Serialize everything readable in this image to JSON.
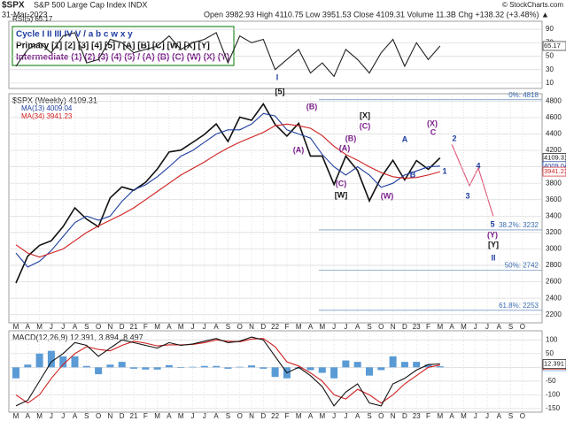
{
  "header": {
    "symbol": "$SPX",
    "name": "S&P 500 Large Cap Index INDX",
    "date": "31-Mar-2023",
    "quote": "Open 3982.93 High 4110.75 Low 3951.53 Close 4109.31 Volume 11.3B Chg +138.32 (+3.48%) ▲",
    "credit": "© StockCharts.com"
  },
  "legend_box": [
    "Cycle I II III IV V / a b c w x y",
    "Primary [1] [2] [3] [4] [5] / [A] [B] [C] [W] [X] [Y]",
    "Intermediate (1) (2) (3) (4) (5) / (A) (B) (C) (W) (X) (Y)"
  ],
  "chart_data": [
    {
      "type": "line",
      "title": "RSI(5) 65.17",
      "ylim": [
        2,
        102
      ],
      "yticks": [
        10,
        30,
        50,
        70,
        90
      ],
      "grid": true,
      "series": [
        {
          "name": "RSI(5)",
          "color": "#222222",
          "values": [
            35,
            60,
            70,
            55,
            80,
            85,
            40,
            45,
            75,
            70,
            55,
            60,
            65,
            80,
            60,
            70,
            75,
            85,
            40,
            80,
            70,
            75,
            30,
            45,
            60,
            25,
            40,
            20,
            60,
            45,
            25,
            55,
            75,
            35,
            70,
            45,
            65.17
          ]
        }
      ]
    },
    {
      "type": "line",
      "title": "$SPX (Weekly) 4109.31",
      "ylim": [
        2100,
        4890
      ],
      "yticks": [
        2200,
        2400,
        2600,
        2800,
        3000,
        3200,
        3400,
        3600,
        3800,
        4000,
        4200,
        4400,
        4600,
        4800
      ],
      "grid": true,
      "categories": [
        "M",
        "A",
        "M",
        "J",
        "J",
        "A",
        "S",
        "O",
        "N",
        "D",
        "21",
        "F",
        "M",
        "A",
        "M",
        "J",
        "J",
        "A",
        "S",
        "O",
        "N",
        "D",
        "22",
        "F",
        "M",
        "A",
        "M",
        "J",
        "J",
        "A",
        "S",
        "O",
        "N",
        "D",
        "23",
        "F",
        "M",
        "A",
        "M",
        "J",
        "J",
        "A",
        "S",
        "O"
      ],
      "series": [
        {
          "name": "$SPX (Weekly)",
          "color": "#111111",
          "values": [
            2585,
            2912,
            3044,
            3100,
            3271,
            3500,
            3363,
            3270,
            3622,
            3756,
            3714,
            3811,
            3973,
            4181,
            4204,
            4298,
            4395,
            4523,
            4308,
            4605,
            4567,
            4766,
            4516,
            4374,
            4530,
            4132,
            4132,
            3785,
            4130,
            3955,
            3586,
            3872,
            4080,
            3840,
            4077,
            3970,
            4109.31,
            null,
            null,
            null,
            null,
            null,
            null,
            null
          ]
        },
        {
          "name": "MA(13) 4009.04",
          "color": "#1f3fa0",
          "values": [
            2950,
            2780,
            2850,
            2980,
            3150,
            3320,
            3400,
            3350,
            3400,
            3580,
            3720,
            3780,
            3880,
            4000,
            4130,
            4200,
            4300,
            4400,
            4450,
            4450,
            4520,
            4650,
            4620,
            4450,
            4400,
            4350,
            4150,
            4000,
            3900,
            4000,
            3900,
            3750,
            3800,
            3900,
            3950,
            4000,
            4009.04,
            null,
            null,
            null,
            null,
            null,
            null,
            null
          ]
        },
        {
          "name": "MA(34) 3941.23",
          "color": "#d02020",
          "values": [
            3050,
            2950,
            2900,
            2950,
            3000,
            3100,
            3200,
            3280,
            3350,
            3420,
            3500,
            3600,
            3700,
            3800,
            3900,
            3980,
            4060,
            4150,
            4230,
            4300,
            4360,
            4420,
            4500,
            4520,
            4500,
            4470,
            4380,
            4250,
            4150,
            4080,
            4000,
            3930,
            3880,
            3860,
            3870,
            3900,
            3941.23,
            null,
            null,
            null,
            null,
            null,
            null,
            null
          ]
        }
      ],
      "levels": [
        {
          "label": "0%: 4818",
          "value": 4818
        },
        {
          "label": "38.2%: 3232",
          "value": 3232
        },
        {
          "label": "50%: 2742",
          "value": 2742
        },
        {
          "label": "61.8%: 2253",
          "value": 2253
        }
      ],
      "annotations": [
        "I",
        "[5]",
        "(B)",
        "[X]",
        "(C)",
        "(A)",
        "(A)",
        "(B)",
        "(C)",
        "[W]",
        "(X)",
        "C",
        "A",
        "B",
        "(W)",
        "1",
        "2",
        "3",
        "4",
        "5",
        "(Y)",
        "[Y]",
        "II"
      ]
    },
    {
      "type": "combo",
      "title": "MACD(12,26,9) 12.391, 3.894, 8.497",
      "ylim": [
        -163,
        133
      ],
      "yticks": [
        -150,
        -100,
        -50,
        0,
        50,
        100
      ],
      "grid": true,
      "categories": [
        "M",
        "A",
        "M",
        "J",
        "J",
        "A",
        "S",
        "O",
        "N",
        "D",
        "21",
        "F",
        "M",
        "A",
        "M",
        "J",
        "J",
        "A",
        "S",
        "O",
        "N",
        "D",
        "22",
        "F",
        "M",
        "A",
        "M",
        "J",
        "J",
        "A",
        "S",
        "O",
        "N",
        "D",
        "23",
        "F",
        "M",
        "A",
        "M",
        "J",
        "J",
        "A",
        "S",
        "O"
      ],
      "series": [
        {
          "name": "Histogram",
          "type": "bar",
          "color": "#5a9bd5",
          "values": [
            -40,
            10,
            50,
            60,
            40,
            40,
            5,
            -25,
            10,
            20,
            -5,
            -8,
            -8,
            8,
            -2,
            2,
            5,
            5,
            -5,
            2,
            7,
            -5,
            -35,
            -40,
            -5,
            -10,
            -20,
            -40,
            25,
            20,
            -30,
            -10,
            40,
            20,
            20,
            10,
            3.894,
            null,
            null,
            null,
            null,
            null,
            null,
            null
          ]
        },
        {
          "name": "Signal",
          "color": "#d02020",
          "values": [
            -100,
            -130,
            -100,
            -40,
            10,
            50,
            75,
            65,
            60,
            80,
            95,
            88,
            78,
            82,
            82,
            83,
            90,
            100,
            95,
            93,
            103,
            105,
            75,
            20,
            5,
            -20,
            -50,
            -100,
            -115,
            -80,
            -100,
            -130,
            -100,
            -60,
            -30,
            0,
            8.497,
            null,
            null,
            null,
            null,
            null,
            null,
            null
          ]
        },
        {
          "name": "MACD",
          "color": "#111111",
          "values": [
            -140,
            -120,
            -50,
            20,
            50,
            90,
            80,
            40,
            70,
            100,
            90,
            80,
            70,
            90,
            80,
            85,
            95,
            105,
            90,
            95,
            110,
            100,
            40,
            -20,
            0,
            -30,
            -70,
            -140,
            -90,
            -60,
            -130,
            -140,
            -60,
            -40,
            -10,
            10,
            12.391,
            null,
            null,
            null,
            null,
            null,
            null,
            null
          ]
        }
      ]
    }
  ]
}
